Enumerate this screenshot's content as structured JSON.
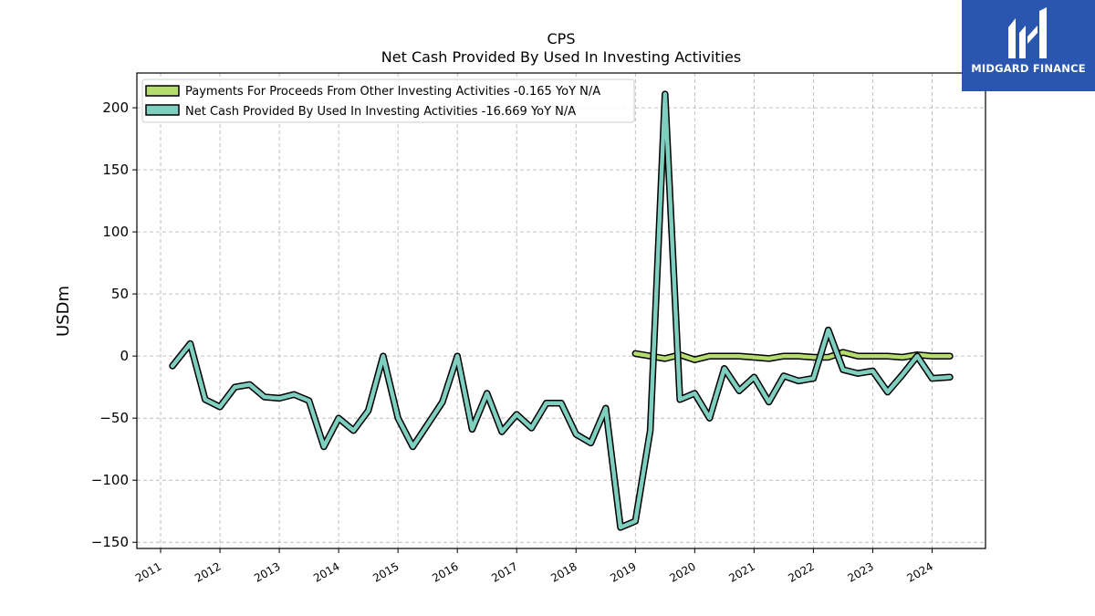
{
  "chart_data": {
    "type": "line",
    "title": "CPS",
    "subtitle": "Net Cash Provided By Used In Investing Activities",
    "xlabel": "",
    "ylabel": "USDm",
    "xlim": [
      2010.6,
      2024.9
    ],
    "ylim": [
      -155,
      228
    ],
    "xticks": [
      2011,
      2012,
      2013,
      2014,
      2015,
      2016,
      2017,
      2018,
      2019,
      2020,
      2021,
      2022,
      2023,
      2024
    ],
    "xtick_labels": [
      "2011",
      "2012",
      "2013",
      "2014",
      "2015",
      "2016",
      "2017",
      "2018",
      "2019",
      "2020",
      "2021",
      "2022",
      "2023",
      "2024"
    ],
    "yticks": [
      -150,
      -100,
      -50,
      0,
      50,
      100,
      150,
      200
    ],
    "ytick_labels": [
      "−150",
      "−100",
      "−50",
      "0",
      "50",
      "100",
      "150",
      "200"
    ],
    "grid": true,
    "legend_position": "top-left",
    "series": [
      {
        "name": "Payments For Proceeds From Other Investing Activities",
        "legend_label": "Payments For Proceeds From Other Investing Activities  -0.165 YoY N/A",
        "color": "#b5dd6e",
        "x": [
          2019.0,
          2019.25,
          2019.5,
          2019.75,
          2020.0,
          2020.25,
          2020.5,
          2020.75,
          2021.0,
          2021.25,
          2021.5,
          2021.75,
          2022.0,
          2022.25,
          2022.5,
          2022.75,
          2023.0,
          2023.25,
          2023.5,
          2023.75,
          2024.0,
          2024.3
        ],
        "y": [
          2,
          0,
          -2,
          1,
          -3,
          0,
          0,
          0,
          -1,
          -2,
          0,
          0,
          -1,
          -1,
          3,
          0,
          0,
          0,
          -1,
          1,
          0,
          0
        ]
      },
      {
        "name": "Net Cash Provided By Used In Investing Activities",
        "legend_label": "Net Cash Provided By Used In Investing Activities  -16.669 YoY N/A",
        "color": "#7ecfc0",
        "x": [
          2011.2,
          2011.5,
          2011.75,
          2012.0,
          2012.25,
          2012.5,
          2012.75,
          2013.0,
          2013.25,
          2013.5,
          2013.75,
          2014.0,
          2014.25,
          2014.5,
          2014.75,
          2015.0,
          2015.25,
          2015.5,
          2015.75,
          2016.0,
          2016.25,
          2016.5,
          2016.75,
          2017.0,
          2017.25,
          2017.5,
          2017.75,
          2018.0,
          2018.25,
          2018.5,
          2018.75,
          2019.0,
          2019.25,
          2019.5,
          2019.75,
          2020.0,
          2020.25,
          2020.5,
          2020.75,
          2021.0,
          2021.25,
          2021.5,
          2021.75,
          2022.0,
          2022.25,
          2022.5,
          2022.75,
          2023.0,
          2023.25,
          2023.5,
          2023.75,
          2024.0,
          2024.3
        ],
        "y": [
          -8,
          10,
          -35,
          -41,
          -25,
          -23,
          -33,
          -34,
          -31,
          -36,
          -73,
          -50,
          -60,
          -44,
          0,
          -50,
          -73,
          -55,
          -37,
          0,
          -59,
          -30,
          -61,
          -47,
          -58,
          -38,
          -38,
          -63,
          -70,
          -42,
          -138,
          -133,
          -60,
          211,
          -35,
          -30,
          -50,
          -10,
          -28,
          -17,
          -37,
          -16,
          -20,
          -18,
          21,
          -11,
          -14,
          -12,
          -29,
          -15,
          0,
          -18,
          -17
        ]
      }
    ]
  },
  "logo": {
    "text": "MIDGARD FINANCE",
    "background": "#2a56b0"
  }
}
